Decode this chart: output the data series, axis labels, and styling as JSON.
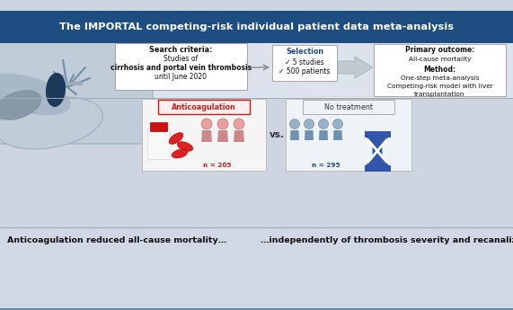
{
  "title": "The IMPORTAL competing-risk individual patient data meta-analysis",
  "title_bg": "#1e4d82",
  "title_color": "#ffffff",
  "bg_top": "#c8d0dc",
  "bg_bottom": "#cdd5e0",
  "content_bg": "#d6dce8",
  "search_box_text_0": "Search criteria:",
  "search_box_text_1": "Studies of",
  "search_box_text_2": "cirrhosis and portal vein thrombosis",
  "search_box_text_3": "until June 2020",
  "sel_title": "Selection",
  "sel_line1": "✓ 5 studies",
  "sel_line2": "✓ 500 patients",
  "outcome_line0": "Primary outcome:",
  "outcome_line1": "All-cause mortality",
  "outcome_line2": "Method:",
  "outcome_line3": "One-step meta-analysis",
  "outcome_line4": "Competing-risk model with liver",
  "outcome_line5": "transplantation",
  "anticoag_label": "Anticoagulation",
  "anticoag_color": "#cc1a1a",
  "vs_text": "vs.",
  "no_treat_label": "No treatment",
  "n_anticoag": "n = 205",
  "n_control": "n = 295",
  "n_color": "#cc1a1a",
  "bottom_left": "Anticoagulation reduced all-cause mortality…",
  "bottom_right": "…independently of thrombosis severity and recanalization",
  "box_fill": "#ffffff",
  "box_edge": "#aaaaaa",
  "liver_fill": "#c0cdd8",
  "liver_edge": "#98acbc",
  "vein_fill": "#1e3a5a",
  "arrow_fill": "#c0c8d0",
  "arrow_edge": "#a8b0bc",
  "sel_title_color": "#1e4d82",
  "white_strip_color": "#dde3ec"
}
